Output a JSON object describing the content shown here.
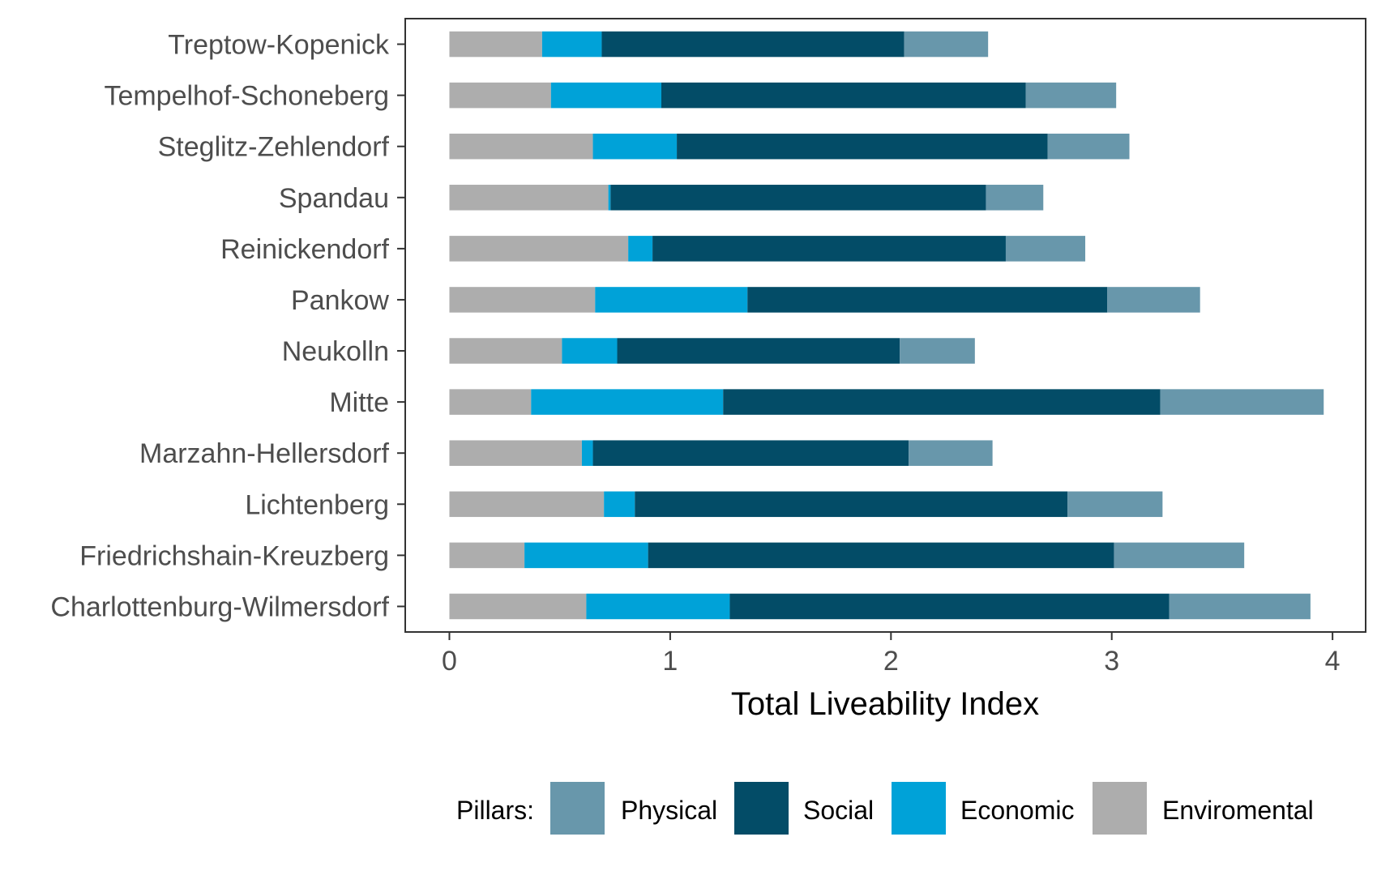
{
  "chart_data": {
    "type": "bar",
    "orientation": "horizontal",
    "stacked": true,
    "xlabel": "Total Liveability Index",
    "ylabel": "",
    "xlim": [
      -0.2,
      4.15
    ],
    "xticks": [
      "0",
      "1",
      "2",
      "3",
      "4"
    ],
    "grid": false,
    "legend_position": "bottom",
    "legend_title": "Pillars:",
    "categories": [
      "Treptow-Kopenick",
      "Tempelhof-Schoneberg",
      "Steglitz-Zehlendorf",
      "Spandau",
      "Reinickendorf",
      "Pankow",
      "Neukolln",
      "Mitte",
      "Marzahn-Hellersdorf",
      "Lichtenberg",
      "Friedrichshain-Kreuzberg",
      "Charlottenburg-Wilmersdorf"
    ],
    "series": [
      {
        "name": "Enviromental",
        "color": "#adadad",
        "values": [
          0.42,
          0.46,
          0.65,
          0.72,
          0.81,
          0.66,
          0.51,
          0.37,
          0.6,
          0.7,
          0.34,
          0.62
        ]
      },
      {
        "name": "Economic",
        "color": "#00a2d8",
        "values": [
          0.27,
          0.5,
          0.38,
          0.01,
          0.11,
          0.69,
          0.25,
          0.87,
          0.05,
          0.14,
          0.56,
          0.65
        ]
      },
      {
        "name": "Social",
        "color": "#034c67",
        "values": [
          1.37,
          1.65,
          1.68,
          1.7,
          1.6,
          1.63,
          1.28,
          1.98,
          1.43,
          1.96,
          2.11,
          1.99
        ]
      },
      {
        "name": "Physical",
        "color": "#6897ab",
        "values": [
          0.38,
          0.41,
          0.37,
          0.26,
          0.36,
          0.42,
          0.34,
          0.74,
          0.38,
          0.43,
          0.59,
          0.64
        ]
      }
    ],
    "legend_order": [
      "Physical",
      "Social",
      "Economic",
      "Enviromental"
    ]
  }
}
